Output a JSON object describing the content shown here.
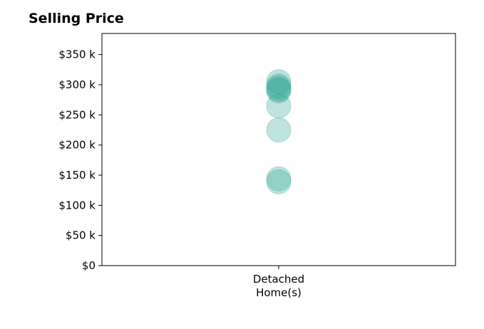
{
  "chart_data": {
    "type": "scatter",
    "title": "Selling Price",
    "xlabel": "",
    "ylabel": "",
    "categories": [
      [
        "Detached",
        "Home(s)"
      ]
    ],
    "ylim": [
      0,
      385000
    ],
    "yticks": [
      0,
      50000,
      100000,
      150000,
      200000,
      250000,
      300000,
      350000
    ],
    "ytick_labels": [
      "$0",
      "$50 k",
      "$100 k",
      "$150 k",
      "$200 k",
      "$250 k",
      "$300 k",
      "$350 k"
    ],
    "grid": false,
    "legend": "none",
    "marker_color": "#3aa99c",
    "series": [
      {
        "category": 0,
        "values": [
          305000,
          298000,
          295000,
          292000,
          290000,
          265000,
          225000,
          144000,
          139000
        ]
      }
    ]
  }
}
